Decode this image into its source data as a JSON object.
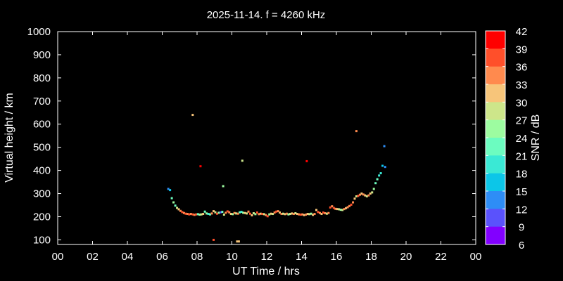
{
  "chart_data": {
    "type": "scatter",
    "title": "2025-11-14. f = 4260 kHz",
    "xlabel": "UT Time / hrs",
    "ylabel": "Virtual height / km",
    "colorbar_label": "SNR / dB",
    "xlim": [
      0,
      24
    ],
    "ylim": [
      80,
      1000
    ],
    "xticks": [
      "00",
      "02",
      "04",
      "06",
      "08",
      "10",
      "12",
      "14",
      "16",
      "18",
      "20",
      "22",
      "00"
    ],
    "yticks": [
      "100",
      "200",
      "300",
      "400",
      "500",
      "600",
      "700",
      "800",
      "900",
      "1000"
    ],
    "colorbar": {
      "ticks": [
        "42",
        "39",
        "36",
        "33",
        "30",
        "27",
        "24",
        "21",
        "18",
        "15",
        "12",
        "9",
        "6"
      ],
      "colors": [
        "#ff0000",
        "#ff4f2a",
        "#ff8a4e",
        "#f7c57a",
        "#cde68a",
        "#9dfca0",
        "#6cfcc0",
        "#3ae9d5",
        "#0cc6e8",
        "#2e8df6",
        "#5a52fc",
        "#8200ff"
      ]
    },
    "points": [
      [
        6.35,
        320,
        15
      ],
      [
        6.45,
        315,
        18
      ],
      [
        6.55,
        280,
        24
      ],
      [
        6.65,
        262,
        27
      ],
      [
        6.75,
        248,
        24
      ],
      [
        6.85,
        238,
        30
      ],
      [
        6.95,
        232,
        33
      ],
      [
        7.05,
        225,
        36
      ],
      [
        7.15,
        220,
        39
      ],
      [
        7.25,
        216,
        36
      ],
      [
        7.35,
        213,
        39
      ],
      [
        7.45,
        212,
        36
      ],
      [
        7.55,
        210,
        39
      ],
      [
        7.65,
        212,
        36
      ],
      [
        7.75,
        210,
        39
      ],
      [
        7.85,
        208,
        36
      ],
      [
        7.95,
        210,
        39
      ],
      [
        8.05,
        211,
        24
      ],
      [
        8.15,
        209,
        27
      ],
      [
        8.25,
        210,
        30
      ],
      [
        8.35,
        212,
        33
      ],
      [
        8.45,
        222,
        24
      ],
      [
        8.55,
        214,
        27
      ],
      [
        8.65,
        212,
        21
      ],
      [
        8.75,
        210,
        24
      ],
      [
        8.85,
        214,
        36
      ],
      [
        8.95,
        224,
        33
      ],
      [
        9.05,
        219,
        30
      ],
      [
        9.15,
        213,
        39
      ],
      [
        9.25,
        217,
        27
      ],
      [
        9.35,
        219,
        12
      ],
      [
        9.45,
        221,
        24
      ],
      [
        9.55,
        209,
        30
      ],
      [
        9.65,
        217,
        36
      ],
      [
        9.75,
        223,
        39
      ],
      [
        9.85,
        219,
        36
      ],
      [
        9.95,
        212,
        33
      ],
      [
        10.05,
        211,
        27
      ],
      [
        10.15,
        216,
        36
      ],
      [
        10.25,
        214,
        30
      ],
      [
        10.35,
        213,
        36
      ],
      [
        10.45,
        219,
        24
      ],
      [
        10.55,
        221,
        21
      ],
      [
        10.65,
        217,
        27
      ],
      [
        10.75,
        216,
        33
      ],
      [
        10.85,
        214,
        30
      ],
      [
        10.95,
        222,
        36
      ],
      [
        11.05,
        213,
        39
      ],
      [
        11.15,
        206,
        33
      ],
      [
        11.25,
        215,
        30
      ],
      [
        11.35,
        211,
        27
      ],
      [
        11.45,
        218,
        39
      ],
      [
        11.55,
        211,
        36
      ],
      [
        11.65,
        213,
        33
      ],
      [
        11.75,
        212,
        39
      ],
      [
        11.85,
        211,
        30
      ],
      [
        11.95,
        207,
        36
      ],
      [
        12.05,
        202,
        39
      ],
      [
        12.15,
        210,
        27
      ],
      [
        12.25,
        213,
        33
      ],
      [
        12.35,
        212,
        30
      ],
      [
        12.45,
        218,
        36
      ],
      [
        12.55,
        222,
        39
      ],
      [
        12.65,
        224,
        36
      ],
      [
        12.75,
        218,
        33
      ],
      [
        12.85,
        212,
        36
      ],
      [
        12.95,
        213,
        30
      ],
      [
        13.05,
        211,
        33
      ],
      [
        13.15,
        213,
        36
      ],
      [
        13.25,
        210,
        27
      ],
      [
        13.35,
        212,
        30
      ],
      [
        13.45,
        214,
        33
      ],
      [
        13.55,
        212,
        36
      ],
      [
        13.65,
        215,
        30
      ],
      [
        13.75,
        212,
        33
      ],
      [
        13.85,
        210,
        36
      ],
      [
        13.95,
        209,
        39
      ],
      [
        14.05,
        210,
        36
      ],
      [
        14.15,
        207,
        33
      ],
      [
        14.25,
        209,
        36
      ],
      [
        14.35,
        212,
        33
      ],
      [
        14.45,
        211,
        30
      ],
      [
        14.55,
        213,
        27
      ],
      [
        14.65,
        208,
        33
      ],
      [
        14.75,
        212,
        36
      ],
      [
        14.85,
        229,
        33
      ],
      [
        14.95,
        220,
        39
      ],
      [
        15.05,
        216,
        36
      ],
      [
        15.15,
        212,
        33
      ],
      [
        15.25,
        218,
        39
      ],
      [
        15.35,
        215,
        36
      ],
      [
        15.45,
        213,
        30
      ],
      [
        15.55,
        216,
        36
      ],
      [
        15.65,
        240,
        39
      ],
      [
        15.75,
        245,
        36
      ],
      [
        15.85,
        238,
        39
      ],
      [
        15.95,
        234,
        36
      ],
      [
        16.05,
        233,
        33
      ],
      [
        16.15,
        232,
        30
      ],
      [
        16.25,
        230,
        27
      ],
      [
        16.35,
        229,
        30
      ],
      [
        16.45,
        233,
        36
      ],
      [
        16.55,
        237,
        33
      ],
      [
        16.65,
        241,
        36
      ],
      [
        16.75,
        246,
        36
      ],
      [
        16.85,
        252,
        39
      ],
      [
        16.95,
        262,
        36
      ],
      [
        17.05,
        278,
        33
      ],
      [
        17.15,
        288,
        30
      ],
      [
        17.25,
        290,
        39
      ],
      [
        17.35,
        295,
        36
      ],
      [
        17.45,
        300,
        33
      ],
      [
        17.55,
        296,
        36
      ],
      [
        17.65,
        292,
        33
      ],
      [
        17.75,
        288,
        30
      ],
      [
        17.85,
        292,
        36
      ],
      [
        17.95,
        300,
        33
      ],
      [
        18.05,
        305,
        30
      ],
      [
        18.15,
        320,
        27
      ],
      [
        18.25,
        345,
        24
      ],
      [
        18.35,
        362,
        24
      ],
      [
        18.45,
        378,
        21
      ],
      [
        18.55,
        388,
        21
      ],
      [
        18.65,
        420,
        18
      ],
      [
        18.75,
        505,
        15
      ],
      [
        18.8,
        415,
        15
      ],
      [
        7.75,
        640,
        33
      ],
      [
        8.2,
        418,
        42
      ],
      [
        8.95,
        100,
        39
      ],
      [
        9.5,
        332,
        27
      ],
      [
        10.6,
        442,
        30
      ],
      [
        10.3,
        93,
        33
      ],
      [
        10.4,
        93,
        33
      ],
      [
        14.3,
        440,
        42
      ],
      [
        17.15,
        570,
        36
      ]
    ]
  }
}
